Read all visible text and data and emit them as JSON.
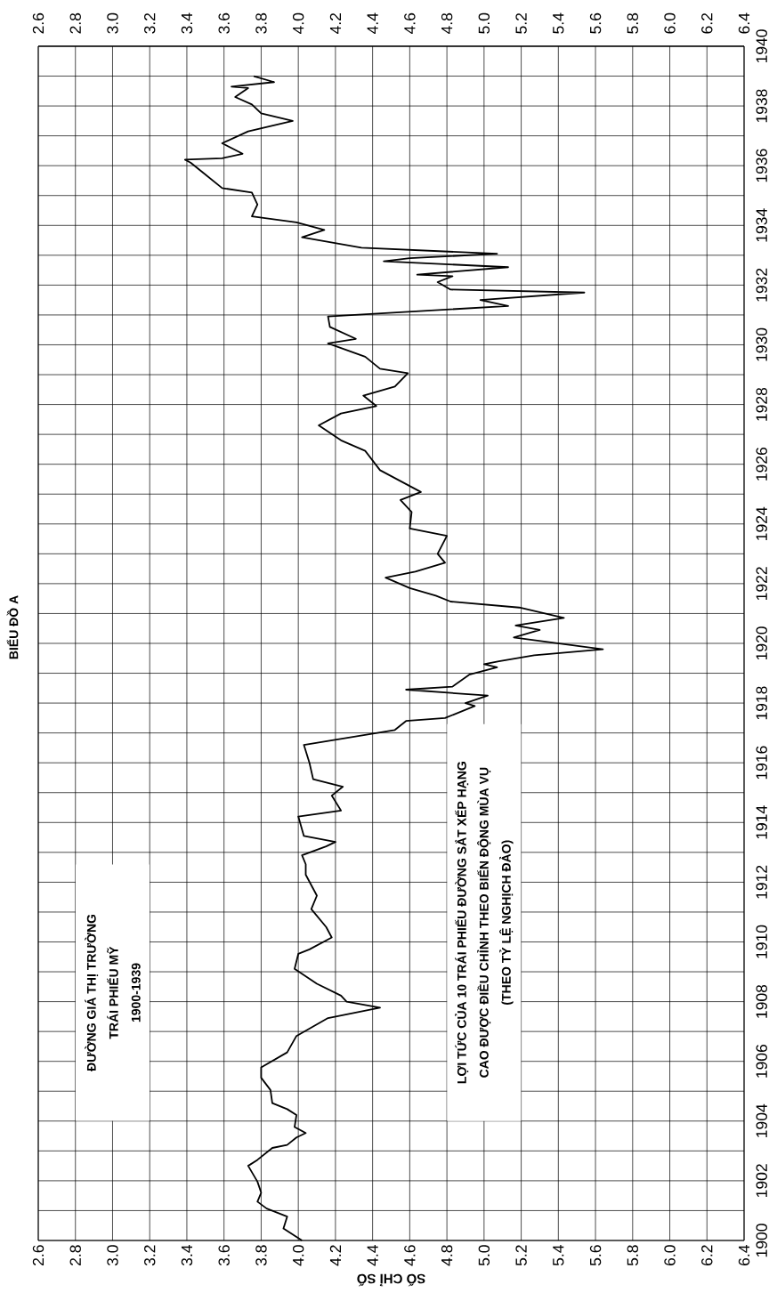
{
  "chart_data": {
    "type": "line",
    "title": "BIỂU ĐỒ A",
    "xlabel": "SỐ CHỈ SỐ",
    "annotations": [
      "ĐƯỜNG GIÁ THỊ TRƯỜNG",
      "TRÁI PHIẾU MỸ",
      "1900-1939",
      "LỢI TỨC CỦA 10 TRÁI PHIẾU ĐƯỜNG SẮT XẾP HẠNG",
      "CAO ĐƯỢC ĐIỀU CHỈNH THEO BIẾN ĐỘNG MÙA VỤ",
      "(THEO TỶ LỆ NGHỊCH ĐẢO)"
    ],
    "x": [
      4.02,
      3.92,
      3.94,
      3.83,
      3.78,
      3.8,
      3.78,
      3.73,
      3.78,
      3.86,
      3.94,
      3.99,
      4.04,
      3.98,
      3.99,
      3.94,
      3.86,
      3.85,
      3.8,
      3.8,
      3.94,
      3.99,
      4.16,
      4.44,
      4.26,
      4.23,
      4.1,
      3.98,
      4.0,
      4.06,
      4.18,
      4.15,
      4.07,
      4.1,
      4.04,
      4.04,
      4.02,
      4.15,
      4.2,
      4.03,
      4.0,
      4.23,
      4.18,
      4.24,
      4.08,
      4.06,
      4.03,
      4.52,
      4.58,
      4.79,
      4.95,
      4.9,
      5.02,
      4.58,
      4.83,
      4.92,
      5.07,
      5.0,
      5.08,
      5.27,
      5.64,
      5.16,
      5.3,
      5.17,
      5.43,
      5.19,
      4.82,
      4.74,
      4.6,
      4.47,
      4.63,
      4.79,
      4.75,
      4.8,
      4.6,
      4.61,
      4.55,
      4.66,
      4.44,
      4.36,
      4.23,
      4.11,
      4.23,
      4.42,
      4.35,
      4.52,
      4.59,
      4.44,
      4.36,
      4.16,
      4.31,
      4.17,
      4.16,
      5.13,
      4.98,
      5.54,
      4.82,
      4.75,
      4.83,
      4.64,
      5.13,
      4.46,
      4.6,
      5.07,
      4.34,
      4.02,
      4.14,
      3.99,
      3.75,
      3.78,
      3.75,
      3.59,
      3.49,
      3.42,
      3.39,
      3.59,
      3.7,
      3.59,
      3.73,
      3.97,
      3.8,
      3.75,
      3.66,
      3.73,
      3.64,
      3.87,
      3.76
    ],
    "values": [
      1900.0,
      1900.4,
      1900.8,
      1901.07,
      1901.3,
      1901.6,
      1901.97,
      1902.5,
      1902.7,
      1903.1,
      1903.2,
      1903.45,
      1903.6,
      1903.8,
      1904.2,
      1904.4,
      1904.6,
      1905.04,
      1905.45,
      1905.8,
      1906.3,
      1906.85,
      1907.45,
      1907.8,
      1908.0,
      1908.2,
      1908.6,
      1909.1,
      1909.6,
      1909.75,
      1910.15,
      1910.5,
      1911.1,
      1911.55,
      1912.25,
      1912.6,
      1912.9,
      1913.2,
      1913.35,
      1913.55,
      1914.2,
      1914.4,
      1914.9,
      1915.2,
      1915.45,
      1916.0,
      1916.6,
      1917.1,
      1917.4,
      1917.5,
      1917.9,
      1918.0,
      1918.25,
      1918.45,
      1918.55,
      1918.95,
      1919.2,
      1919.3,
      1919.4,
      1919.6,
      1919.8,
      1920.2,
      1920.45,
      1920.6,
      1920.85,
      1921.2,
      1921.4,
      1921.6,
      1921.85,
      1922.2,
      1922.4,
      1922.7,
      1923.0,
      1923.6,
      1923.85,
      1924.4,
      1924.8,
      1925.07,
      1925.8,
      1926.45,
      1926.8,
      1927.3,
      1927.7,
      1927.95,
      1928.3,
      1928.6,
      1929.05,
      1929.2,
      1929.6,
      1930.05,
      1930.2,
      1930.6,
      1930.95,
      1931.3,
      1931.5,
      1931.75,
      1931.85,
      1932.1,
      1932.3,
      1932.35,
      1932.6,
      1932.8,
      1932.9,
      1933.05,
      1933.25,
      1933.6,
      1933.85,
      1934.1,
      1934.3,
      1934.7,
      1935.1,
      1935.25,
      1935.75,
      1936.1,
      1936.2,
      1936.25,
      1936.4,
      1936.75,
      1937.15,
      1937.5,
      1937.75,
      1938.05,
      1938.3,
      1938.6,
      1938.65,
      1938.8,
      1939.0
    ],
    "color": "#000000",
    "line_style": "solid",
    "grid": true,
    "ylim": [
      1900,
      1940
    ],
    "yticks": [
      1900,
      {
        "value": 1901,
        "label": null
      },
      1902,
      {
        "value": 1903,
        "label": null
      },
      1904,
      {
        "value": 1905,
        "label": null
      },
      1906,
      {
        "value": 1907,
        "label": null
      },
      1908,
      {
        "value": 1909,
        "label": null
      },
      1910,
      {
        "value": 1911,
        "label": null
      },
      1912,
      {
        "value": 1913,
        "label": null
      },
      1914,
      {
        "value": 1915,
        "label": null
      },
      1916,
      {
        "value": 1917,
        "label": null
      },
      1918,
      {
        "value": 1919,
        "label": null
      },
      1920,
      {
        "value": 1921,
        "label": null
      },
      1922,
      {
        "value": 1923,
        "label": null
      },
      1924,
      {
        "value": 1925,
        "label": null
      },
      1926,
      {
        "value": 1927,
        "label": null
      },
      1928,
      {
        "value": 1929,
        "label": null
      },
      1930,
      {
        "value": 1931,
        "label": null
      },
      1932,
      {
        "value": 1933,
        "label": null
      },
      1934,
      {
        "value": 1935,
        "label": null
      },
      1936,
      {
        "value": 1937,
        "label": null
      },
      1938,
      {
        "value": 1939,
        "label": null
      },
      1940
    ],
    "xlim": [
      2.6,
      6.4
    ],
    "xticks": [
      2.6,
      2.8,
      {
        "value": 3.0,
        "label": "3.0"
      },
      3.2,
      3.4,
      3.6,
      3.8,
      {
        "value": 4.0,
        "label": "4.0"
      },
      4.2,
      4.4,
      4.6,
      4.8,
      {
        "value": 5.0,
        "label": "5.0"
      },
      5.2,
      5.4,
      5.6,
      5.8,
      {
        "value": 6.0,
        "label": "6.0"
      },
      6.2,
      6.4
    ],
    "x2lim": [
      2.6,
      6.4
    ],
    "x2ticks": [
      2.6,
      2.8,
      {
        "value": 3.0,
        "label": "3.0"
      },
      3.2,
      3.4,
      3.6,
      3.8,
      {
        "value": 4.0,
        "label": "4.0"
      },
      4.2,
      4.4,
      4.6,
      4.8,
      {
        "value": 5.0,
        "label": "5.0"
      },
      5.2,
      5.4,
      5.6,
      5.8,
      {
        "value": 6.0,
        "label": "6.0"
      },
      6.2,
      6.4
    ]
  }
}
